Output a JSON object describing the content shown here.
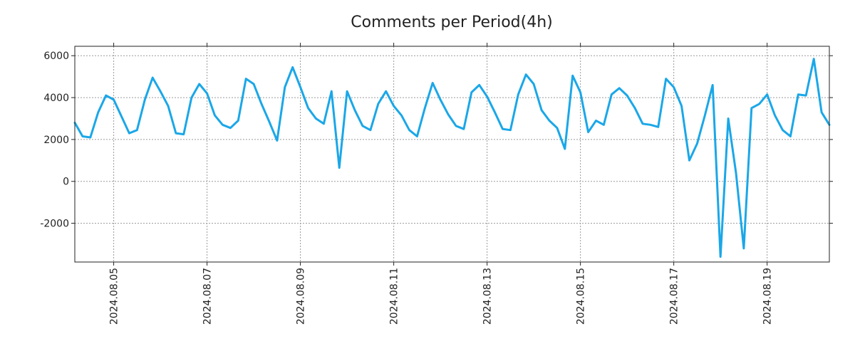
{
  "chart_data": {
    "type": "line",
    "title": "Comments per Period(4h)",
    "xlabel": "",
    "ylabel": "",
    "period_hours": 4,
    "x_start_index": 0,
    "x_end_index": 97,
    "ylim": [
      -3850,
      6450
    ],
    "y_ticks": [
      6000,
      4000,
      2000,
      0,
      -2000
    ],
    "y_tick_labels": [
      "6000",
      "4000",
      "2000",
      "0",
      "-2000"
    ],
    "x_ticks": [
      {
        "label": "2024.08.05",
        "index": 5
      },
      {
        "label": "2024.08.07",
        "index": 17
      },
      {
        "label": "2024.08.09",
        "index": 29
      },
      {
        "label": "2024.08.11",
        "index": 41
      },
      {
        "label": "2024.08.13",
        "index": 53
      },
      {
        "label": "2024.08.15",
        "index": 65
      },
      {
        "label": "2024.08.17",
        "index": 77
      },
      {
        "label": "2024.08.19",
        "index": 89
      }
    ],
    "grid": true,
    "legend": "none",
    "series": [
      {
        "name": "Comments",
        "color": "#1aa7e8",
        "values": [
          2800,
          2150,
          2100,
          3300,
          4100,
          3900,
          3100,
          2300,
          2450,
          3900,
          4950,
          4300,
          3600,
          2300,
          2250,
          4000,
          4650,
          4200,
          3150,
          2700,
          2550,
          2900,
          4900,
          4650,
          3700,
          2850,
          1950,
          4500,
          5450,
          4500,
          3500,
          3000,
          2750,
          4300,
          650,
          4300,
          3400,
          2650,
          2450,
          3700,
          4300,
          3600,
          3150,
          2450,
          2150,
          3500,
          4700,
          3900,
          3200,
          2650,
          2500,
          4250,
          4600,
          4050,
          3300,
          2500,
          2450,
          4150,
          5100,
          4650,
          3400,
          2900,
          2550,
          1550,
          5050,
          4250,
          2350,
          2900,
          2700,
          4150,
          4450,
          4100,
          3500,
          2750,
          2700,
          2600,
          4900,
          4500,
          3600,
          1000,
          1800,
          3150,
          4600,
          -3600,
          3000,
          400,
          -3200,
          3500,
          3700,
          4150,
          3150,
          2450,
          2150,
          4150,
          4100,
          5850,
          3300,
          2700
        ]
      }
    ]
  }
}
